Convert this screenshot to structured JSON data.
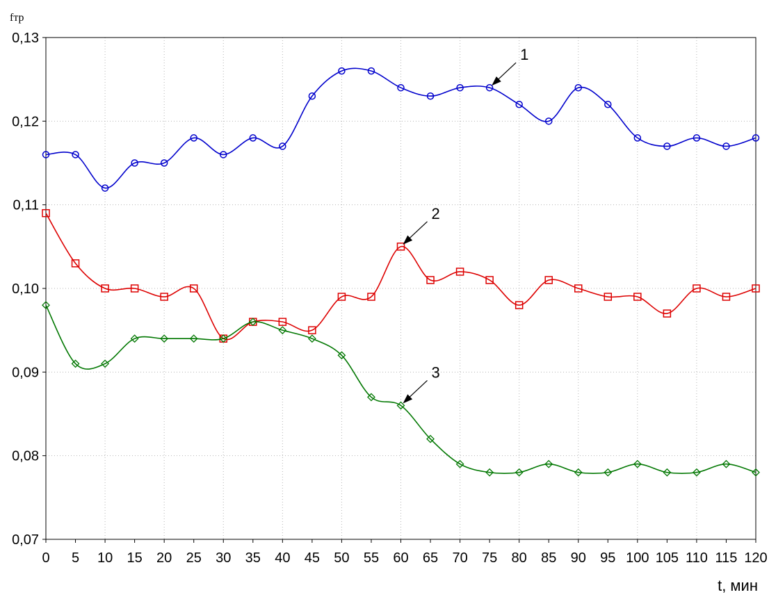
{
  "chart_data": {
    "type": "line",
    "ylabel": "fтр",
    "xlabel": "t, мин",
    "xlim": [
      0,
      120
    ],
    "ylim": [
      0.07,
      0.13
    ],
    "x_ticks": [
      "0",
      "5",
      "10",
      "15",
      "20",
      "25",
      "30",
      "35",
      "40",
      "45",
      "50",
      "55",
      "60",
      "65",
      "70",
      "75",
      "80",
      "85",
      "90",
      "95",
      "100",
      "105",
      "110",
      "115",
      "120"
    ],
    "y_ticks": [
      "0,07",
      "0,08",
      "0,09",
      "0,10",
      "0,11",
      "0,12",
      "0,13"
    ],
    "grid": true,
    "x": [
      0,
      5,
      10,
      15,
      20,
      25,
      30,
      35,
      40,
      45,
      50,
      55,
      60,
      65,
      70,
      75,
      80,
      85,
      90,
      95,
      100,
      105,
      110,
      115,
      120
    ],
    "series": [
      {
        "label_number": "1",
        "color": "#0000cc",
        "marker": "circle",
        "values": [
          0.116,
          0.116,
          0.112,
          0.115,
          0.115,
          0.118,
          0.116,
          0.118,
          0.117,
          0.123,
          0.126,
          0.126,
          0.124,
          0.123,
          0.124,
          0.124,
          0.122,
          0.12,
          0.124,
          0.122,
          0.118,
          0.117,
          0.118,
          0.117,
          0.118
        ],
        "callout_x": 75
      },
      {
        "label_number": "2",
        "color": "#dd0000",
        "marker": "square",
        "values": [
          0.109,
          0.103,
          0.1,
          0.1,
          0.099,
          0.1,
          0.094,
          0.096,
          0.096,
          0.095,
          0.099,
          0.099,
          0.105,
          0.101,
          0.102,
          0.101,
          0.098,
          0.101,
          0.1,
          0.099,
          0.099,
          0.097,
          0.1,
          0.099,
          0.1
        ],
        "callout_x": 60
      },
      {
        "label_number": "3",
        "color": "#007700",
        "marker": "diamond",
        "values": [
          0.098,
          0.091,
          0.091,
          0.094,
          0.094,
          0.094,
          0.094,
          0.096,
          0.095,
          0.094,
          0.092,
          0.087,
          0.086,
          0.082,
          0.079,
          0.078,
          0.078,
          0.079,
          0.078,
          0.078,
          0.079,
          0.078,
          0.078,
          0.079,
          0.078
        ],
        "callout_x": 60
      }
    ]
  }
}
